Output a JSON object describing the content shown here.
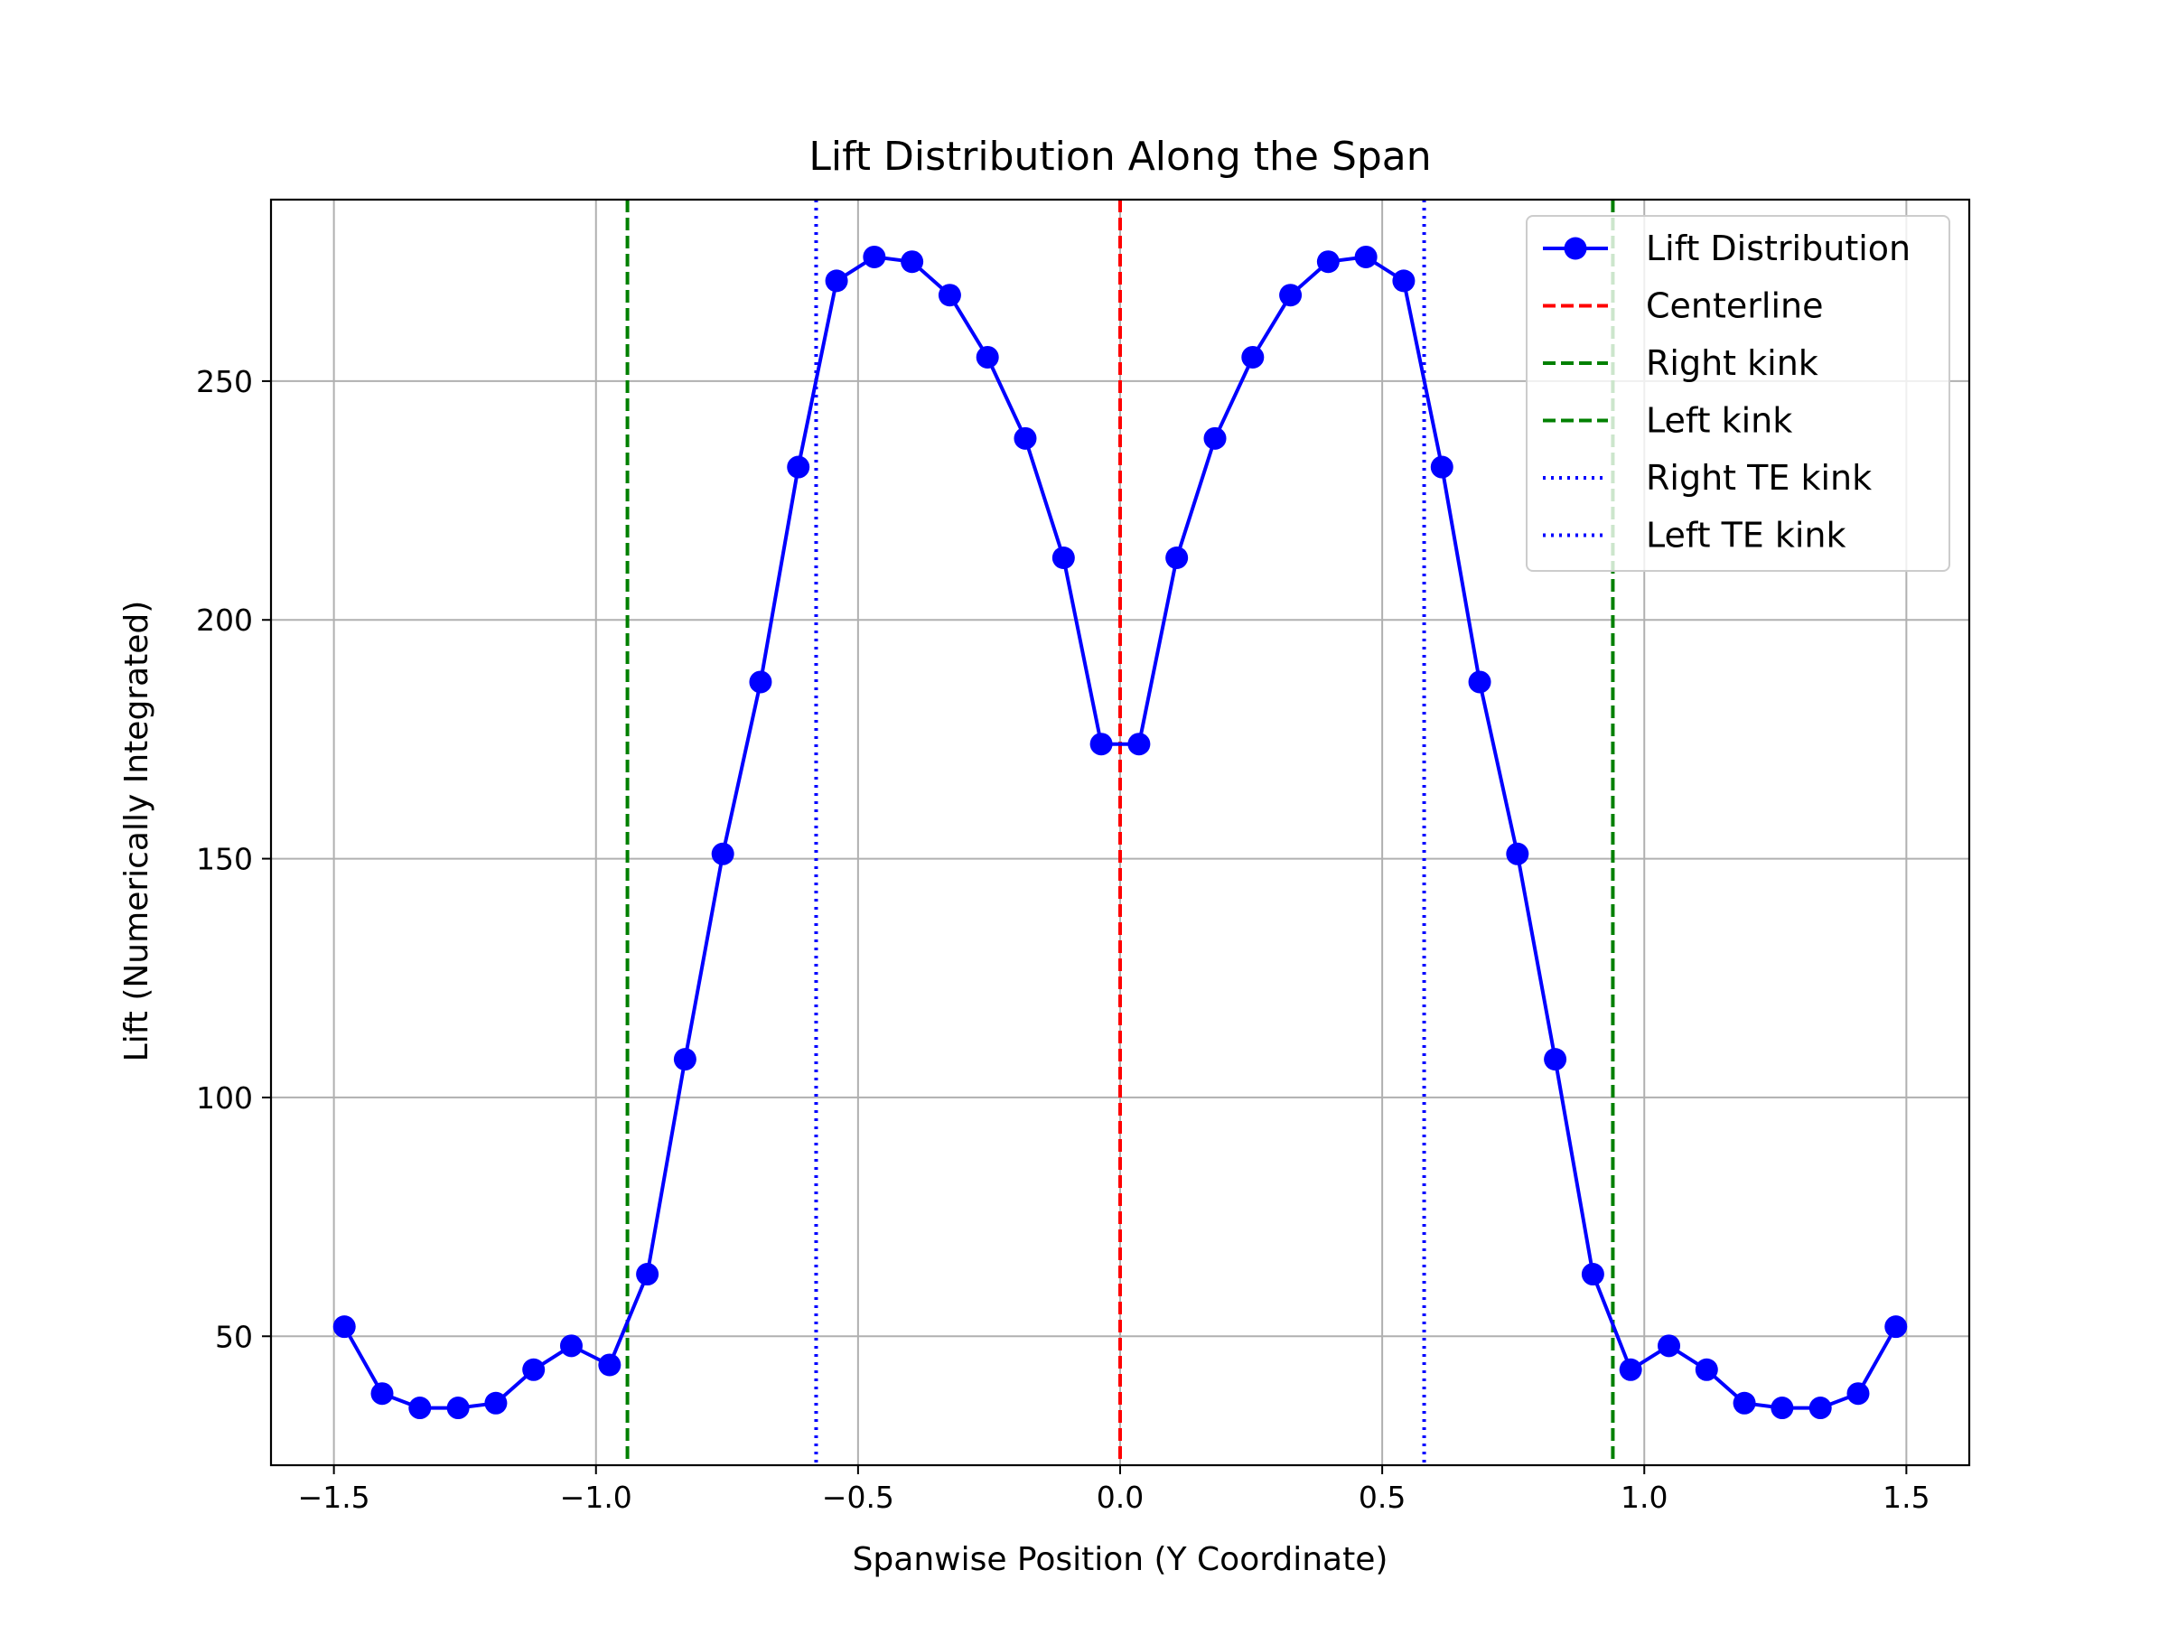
{
  "chart_data": {
    "type": "line",
    "title": "Lift Distribution Along the Span",
    "xlabel": "Spanwise Position (Y Coordinate)",
    "ylabel": "Lift (Numerically Integrated)",
    "xlim": [
      -1.62,
      1.62
    ],
    "ylim": [
      23,
      288
    ],
    "xticks": [
      -1.5,
      -1.0,
      -0.5,
      0.0,
      0.5,
      1.0,
      1.5
    ],
    "xtick_labels": [
      "−1.5",
      "−1.0",
      "−0.5",
      "0.0",
      "0.5",
      "1.0",
      "1.5"
    ],
    "yticks": [
      50,
      100,
      150,
      200,
      250
    ],
    "ytick_labels": [
      "50",
      "100",
      "150",
      "200",
      "250"
    ],
    "grid": true,
    "legend_position": "top-right",
    "series": [
      {
        "name": "Lift Distribution",
        "color": "#0000ff",
        "marker": "circle",
        "x": [
          -1.48,
          -1.408,
          -1.336,
          -1.263,
          -1.191,
          -1.119,
          -1.047,
          -0.974,
          -0.902,
          -0.83,
          -0.758,
          -0.686,
          -0.614,
          -0.541,
          -0.469,
          -0.397,
          -0.325,
          -0.253,
          -0.181,
          -0.108,
          -0.036,
          0.036,
          0.108,
          0.181,
          0.253,
          0.325,
          0.397,
          0.469,
          0.541,
          0.614,
          0.686,
          0.758,
          0.83,
          0.902,
          0.974,
          1.047,
          1.119,
          1.191,
          1.263,
          1.336,
          1.408,
          1.48
        ],
        "y": [
          52,
          38,
          35,
          35,
          36,
          43,
          48,
          44,
          63,
          108,
          151,
          187,
          232,
          271,
          276,
          275,
          268,
          255,
          238,
          213,
          174,
          174,
          213,
          238,
          255,
          268,
          275,
          276,
          271,
          232,
          187,
          151,
          108,
          63,
          43,
          48,
          43,
          36,
          35,
          35,
          38,
          52
        ]
      }
    ],
    "reference_lines": [
      {
        "name": "Centerline",
        "x": 0.0,
        "color": "#ff0000",
        "style": "dashed"
      },
      {
        "name": "Right kink",
        "x": 0.94,
        "color": "#008000",
        "style": "dashed"
      },
      {
        "name": "Left kink",
        "x": -0.94,
        "color": "#008000",
        "style": "dashed"
      },
      {
        "name": "Right TE kink",
        "x": 0.58,
        "color": "#0000ff",
        "style": "dotted"
      },
      {
        "name": "Left TE kink",
        "x": -0.58,
        "color": "#0000ff",
        "style": "dotted"
      }
    ]
  }
}
